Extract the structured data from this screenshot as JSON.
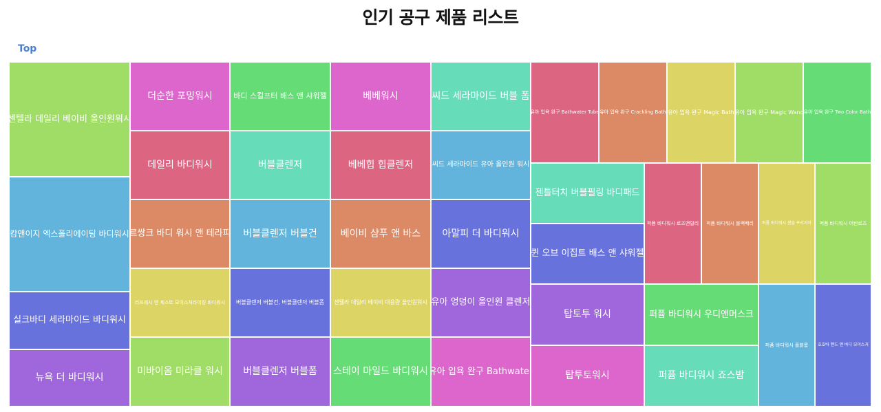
{
  "page": {
    "title": "인기 공구 제품 리스트",
    "breadcrumb": "Top"
  },
  "chart_data": {
    "type": "treemap",
    "colors": [
      "#a0dd66",
      "#62b4dc",
      "#6872dc",
      "#a066dc",
      "#dc66cc",
      "#dc6682",
      "#dc8a66",
      "#ddd466",
      "#66dc76",
      "#66dcb8"
    ],
    "items": [
      {
        "label": "센텔라 데일리 베이비 올인원워시",
        "color": "#a0dd66"
      },
      {
        "label": "캄앤이지 엑스폴리에이팅 바디워시",
        "color": "#62b4dc"
      },
      {
        "label": "실크바디 세라마이드 바디워시",
        "color": "#6872dc"
      },
      {
        "label": "뉴욕 더 바디워시",
        "color": "#a066dc"
      },
      {
        "label": "더순한 포밍워시",
        "color": "#dc66cc"
      },
      {
        "label": "데일리 바디워시",
        "color": "#dc6682"
      },
      {
        "label": "르쌍크 바디 워시 앤 테라피",
        "color": "#dc8a66"
      },
      {
        "label": "리프레시 앤 제스트 모이스처라이징 바디워시",
        "color": "#ddd466"
      },
      {
        "label": "미바이옴 미라클 워시",
        "color": "#a0dd66"
      },
      {
        "label": "바디 스컬프터 배스 앤 샤워젤",
        "color": "#66dc76"
      },
      {
        "label": "버블클렌저",
        "color": "#66dcb8"
      },
      {
        "label": "버블클렌저 버블건",
        "color": "#62b4dc"
      },
      {
        "label": "버블클렌저 버블건, 버블클렌저 버블폼",
        "color": "#6872dc"
      },
      {
        "label": "버블클렌저 버블폼",
        "color": "#a066dc"
      },
      {
        "label": "베베워시",
        "color": "#dc66cc"
      },
      {
        "label": "베베힙 힙클렌저",
        "color": "#dc6682"
      },
      {
        "label": "베이비 샴푸 앤 바스",
        "color": "#dc8a66"
      },
      {
        "label": "센텔라 데일리 베이비 대용량 올인원워시",
        "color": "#ddd466"
      },
      {
        "label": "스테이 마일드 바디워시",
        "color": "#66dc76"
      },
      {
        "label": "씨드 세라마이드 버블 폼",
        "color": "#66dcb8"
      },
      {
        "label": "씨드 세라마이드 유아 올인원 워시",
        "color": "#62b4dc"
      },
      {
        "label": "아말피 더 바디워시",
        "color": "#6872dc"
      },
      {
        "label": "유아 엉덩이 올인원 클렌저",
        "color": "#a066dc"
      },
      {
        "label": "유아 입욕 완구 Bathwater",
        "color": "#dc66cc"
      },
      {
        "label": "유아 입욕 완구 Bathwater Tube",
        "color": "#dc6682"
      },
      {
        "label": "유아 입욕 완구 Crackling Bath",
        "color": "#dc8a66"
      },
      {
        "label": "유아 입욕 완구 Magic Bath",
        "color": "#ddd466"
      },
      {
        "label": "유아 입욕 완구 Magic Wand",
        "color": "#a0dd66"
      },
      {
        "label": "유아 입욕 완구 Two Color Bath",
        "color": "#66dc76"
      },
      {
        "label": "젠틀터치 버블필링 바디패드",
        "color": "#66dcb8"
      },
      {
        "label": "퀸 오브 이집트 배스 앤 샤워젤",
        "color": "#6872dc"
      },
      {
        "label": "퍼퓸 바디워시 로즈앤릴리",
        "color": "#dc6682"
      },
      {
        "label": "퍼퓸 바디워시 블랙베리",
        "color": "#dc8a66"
      },
      {
        "label": "퍼퓸 바디워시 샌들 프리지아",
        "color": "#ddd466"
      },
      {
        "label": "퍼퓸 바디워시 어반로즈",
        "color": "#a0dd66"
      },
      {
        "label": "탑토투 워시",
        "color": "#a066dc"
      },
      {
        "label": "탑투토워시",
        "color": "#dc66cc"
      },
      {
        "label": "퍼퓸 바디워시 우디앤머스크",
        "color": "#66dc76"
      },
      {
        "label": "퍼퓸 바디워시 죠스밤",
        "color": "#66dcb8"
      },
      {
        "label": "퍼퓸 바디워시 풀블룸",
        "color": "#62b4dc"
      },
      {
        "label": "호호바 핸드 앤 바디 모이스처",
        "color": "#6872dc"
      }
    ]
  }
}
